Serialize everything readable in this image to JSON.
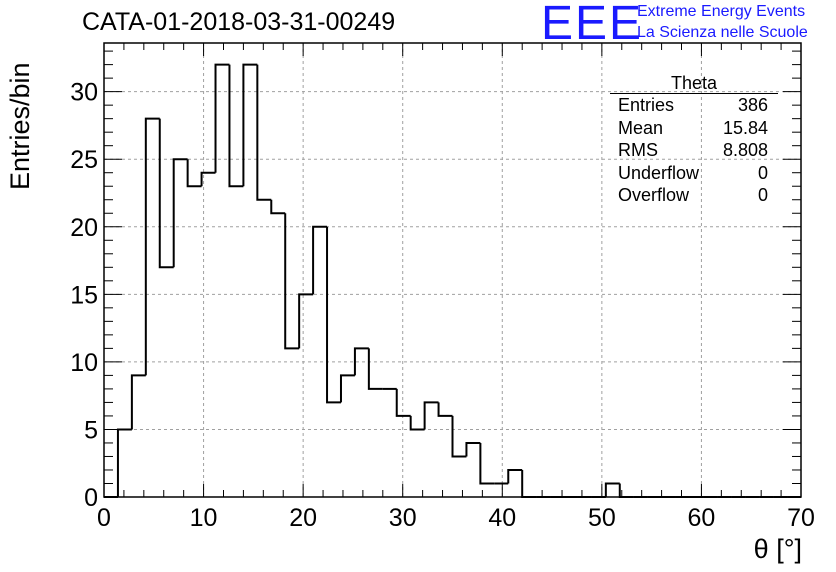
{
  "header": {
    "title": "CATA-01-2018-03-31-00249",
    "logo": "EEE",
    "org_line1": "Extreme Energy Events",
    "org_line2": "La Scienza nelle Scuole"
  },
  "stats_box": {
    "title": "Theta",
    "rows": [
      {
        "label": "Entries",
        "value": "386"
      },
      {
        "label": "Mean",
        "value": "15.84"
      },
      {
        "label": "RMS",
        "value": "8.808"
      },
      {
        "label": "Underflow",
        "value": "0"
      },
      {
        "label": "Overflow",
        "value": "0"
      }
    ]
  },
  "chart_data": {
    "type": "bar",
    "style": "step-histogram",
    "ylabel": "Entries/bin",
    "xlabel": "θ [°]",
    "xlim": [
      0,
      70
    ],
    "ylim": [
      0,
      33.6
    ],
    "bin_width": 1.4,
    "bin_edges_start": 0,
    "values": [
      0,
      5,
      9,
      28,
      17,
      25,
      23,
      24,
      32,
      23,
      32,
      22,
      21,
      11,
      15,
      20,
      7,
      9,
      11,
      8,
      8,
      6,
      5,
      7,
      6,
      3,
      4,
      1,
      1,
      2,
      0,
      0,
      0,
      0,
      0,
      0,
      1,
      0,
      0,
      0,
      0,
      0,
      0,
      0,
      0,
      0,
      0,
      0,
      0,
      0
    ],
    "x_ticks": [
      "0",
      "10",
      "20",
      "30",
      "40",
      "50",
      "60",
      "70"
    ],
    "y_ticks": [
      "0",
      "5",
      "10",
      "15",
      "20",
      "25",
      "30"
    ],
    "grid": true,
    "line_color": "#000000",
    "grid_color": "#a0a0a0"
  }
}
